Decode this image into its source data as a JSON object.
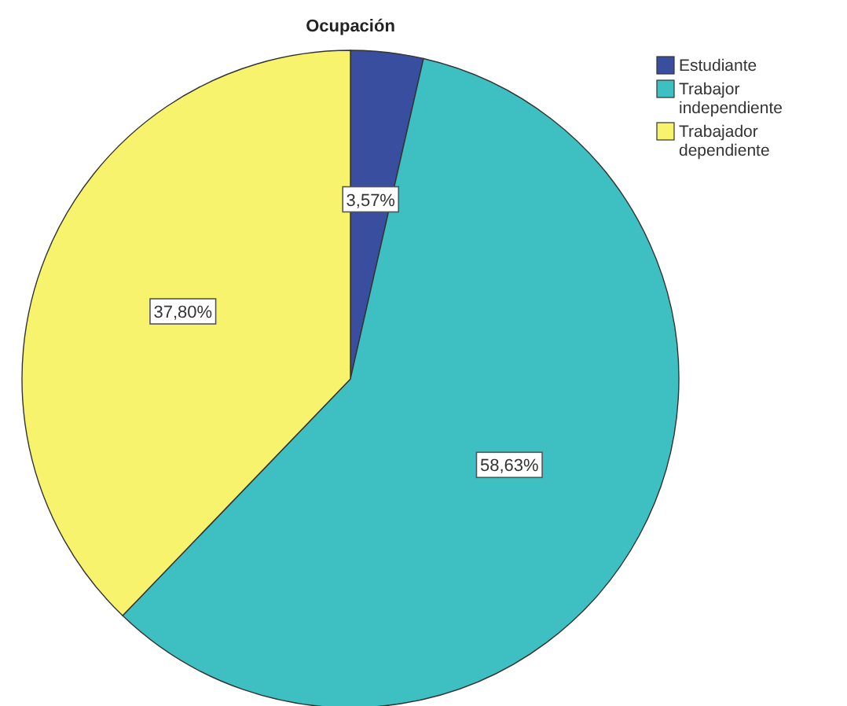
{
  "chart_data": {
    "type": "pie",
    "title": "Ocupación",
    "categories": [
      "Estudiante",
      "Trabajor independiente",
      "Trabajador dependiente"
    ],
    "values": [
      3.57,
      58.63,
      37.8
    ],
    "colors": [
      "#3a4ea0",
      "#3ebfc1",
      "#f8f36c"
    ],
    "value_labels": [
      "3,57%",
      "58,63%",
      "37,80%"
    ],
    "legend": "top right"
  }
}
